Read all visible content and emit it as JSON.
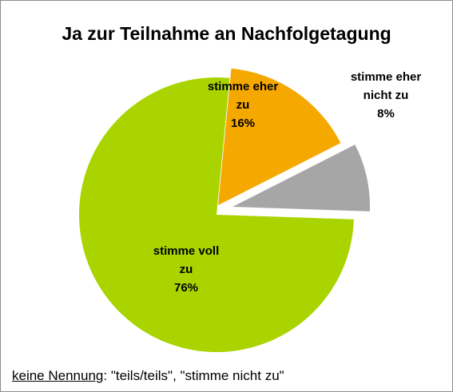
{
  "chart_data": {
    "type": "pie",
    "title": "Ja zur Teilnahme an Nachfolgetagung",
    "exploded": true,
    "slices": [
      {
        "label_lines": [
          "stimme voll",
          "zu",
          "76%"
        ],
        "value": 76,
        "color": "#a9d400",
        "label_color": "#000000"
      },
      {
        "label_lines": [
          "stimme eher",
          "zu",
          "16%"
        ],
        "value": 16,
        "color": "#f5a800",
        "label_color": "#000000"
      },
      {
        "label_lines": [
          "stimme eher",
          "nicht zu",
          "8%"
        ],
        "value": 8,
        "color": "#a6a6a6",
        "label_color": "#000000"
      }
    ]
  },
  "footnote": {
    "label": "keine Nennung",
    "text": ": \"teils/teils\", \"stimme nicht zu\""
  }
}
